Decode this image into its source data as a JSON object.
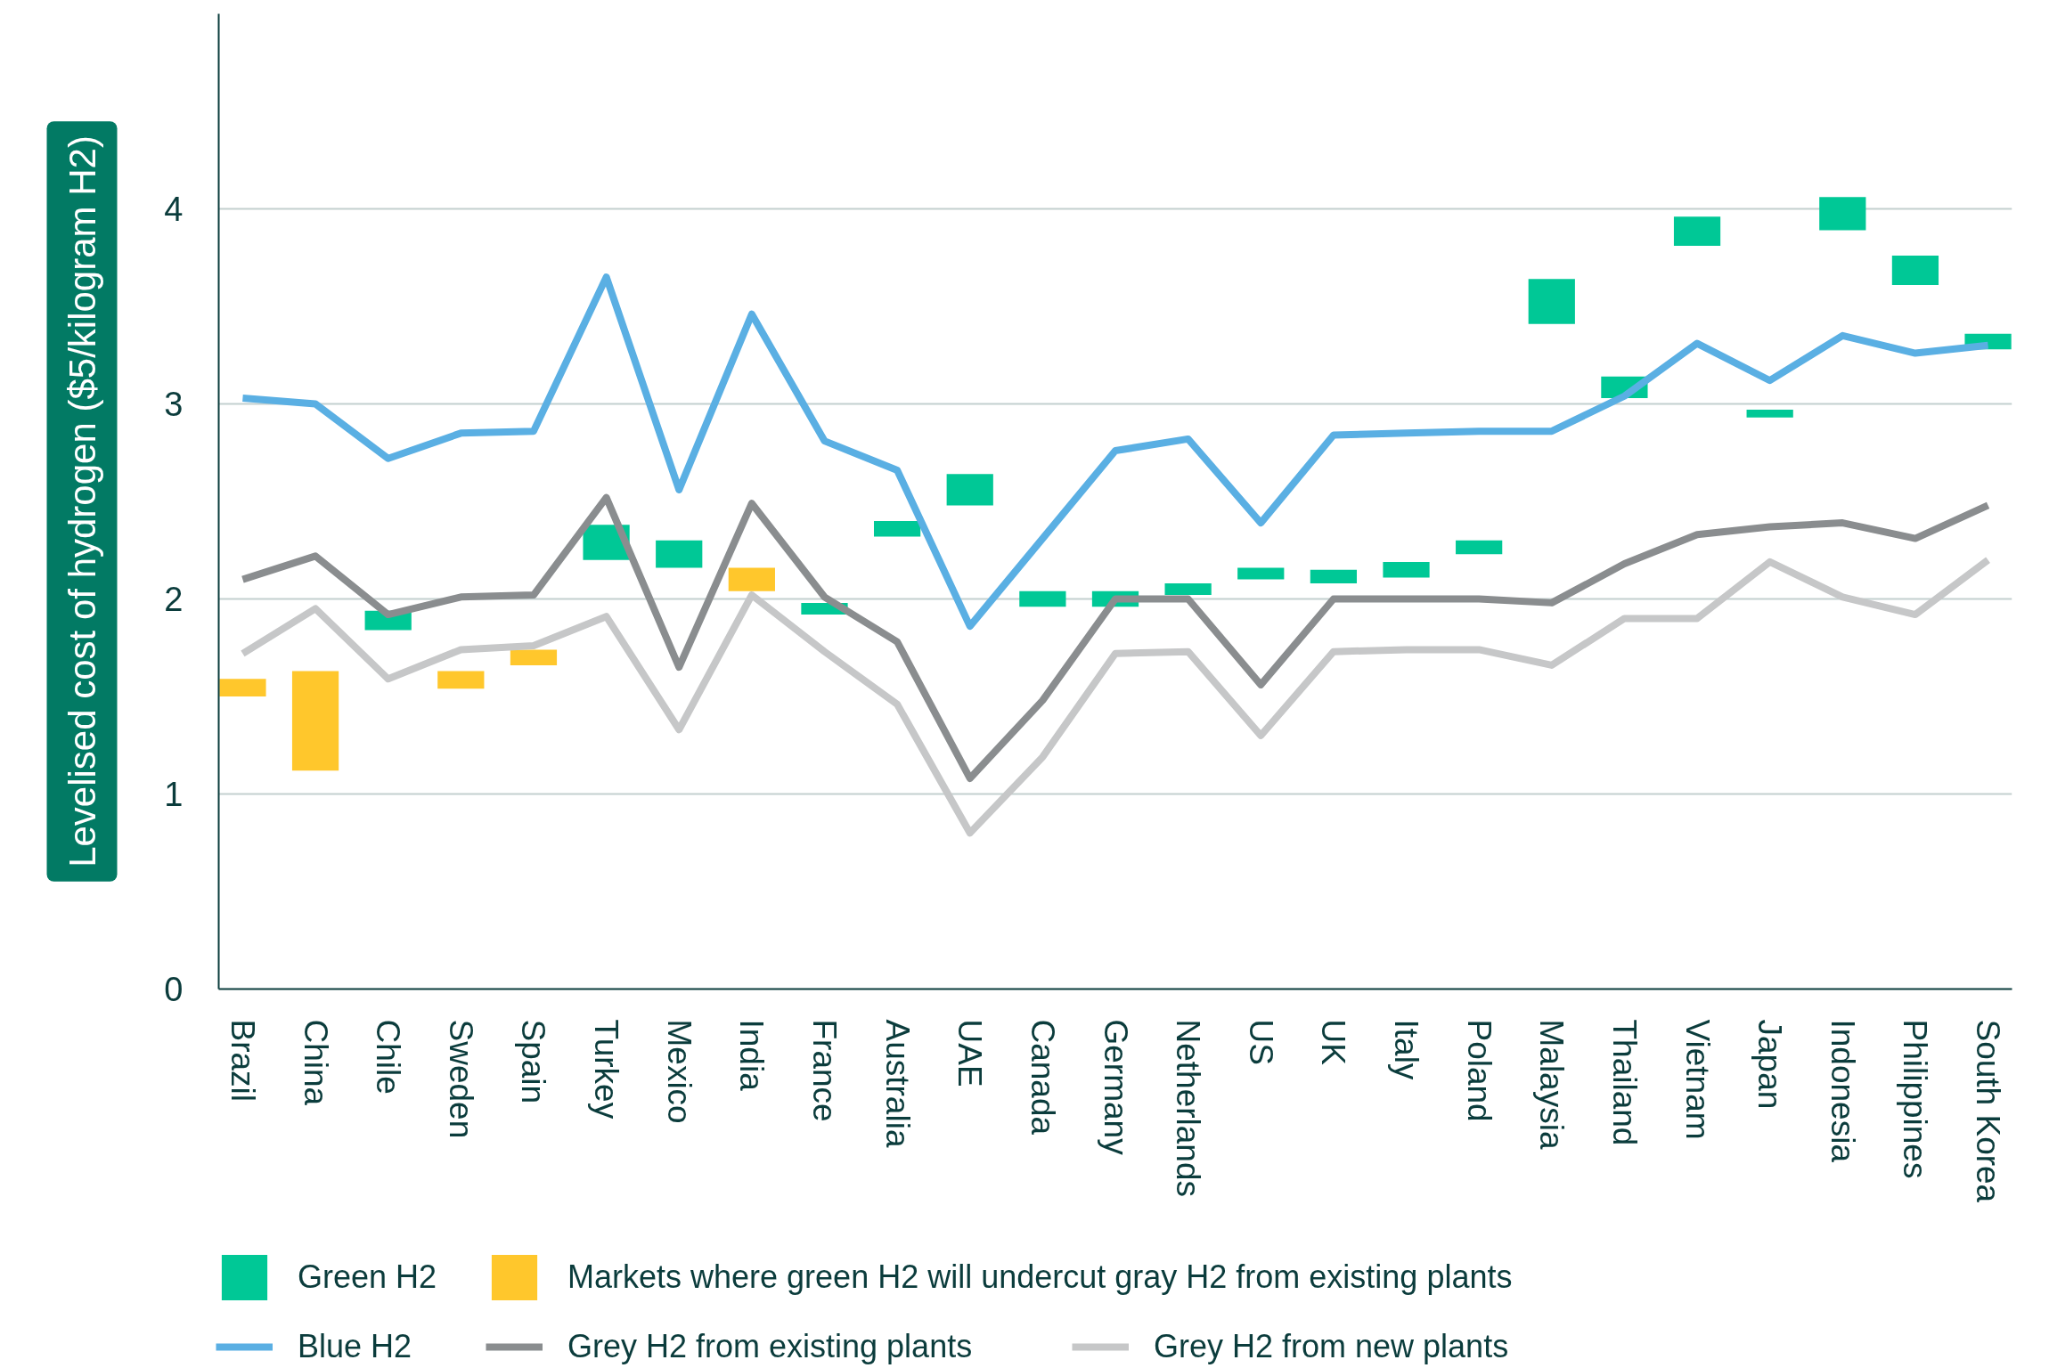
{
  "chart_data": {
    "type": "line",
    "ylabel": "Levelised cost of hydrogen ($5/kilogram H2)",
    "categories": [
      "Brazil",
      "China",
      "Chile",
      "Sweden",
      "Spain",
      "Turkey",
      "Mexico",
      "India",
      "France",
      "Australia",
      "UAE",
      "Canada",
      "Germany",
      "Netherlands",
      "US",
      "UK",
      "Italy",
      "Poland",
      "Malaysia",
      "Thailand",
      "Vietnam",
      "Japan",
      "Indonesia",
      "Philippines",
      "South Korea"
    ],
    "series": [
      {
        "name": "Green H2",
        "type": "bar",
        "color": "#00c896",
        "base": [
          null,
          null,
          1.84,
          null,
          null,
          2.2,
          2.16,
          null,
          1.92,
          2.32,
          2.48,
          1.96,
          1.96,
          2.02,
          2.1,
          2.08,
          2.11,
          2.23,
          3.41,
          3.03,
          3.81,
          2.93,
          3.89,
          3.61,
          3.28
        ],
        "values": [
          null,
          null,
          0.1,
          null,
          null,
          0.18,
          0.14,
          null,
          0.06,
          0.08,
          0.16,
          0.08,
          0.08,
          0.06,
          0.06,
          0.07,
          0.08,
          0.07,
          0.23,
          0.11,
          0.15,
          0.04,
          0.17,
          0.15,
          0.08
        ]
      },
      {
        "name": "Markets where green H2 will undercut gray H2 from existing plants",
        "type": "bar",
        "color": "#ffc72c",
        "base": [
          1.5,
          1.12,
          null,
          1.54,
          1.66,
          null,
          null,
          2.04,
          null,
          null,
          null,
          null,
          null,
          null,
          null,
          null,
          null,
          null,
          null,
          null,
          null,
          null,
          null,
          null,
          null
        ],
        "values": [
          0.09,
          0.51,
          null,
          0.09,
          0.08,
          null,
          null,
          0.12,
          null,
          null,
          null,
          null,
          null,
          null,
          null,
          null,
          null,
          null,
          null,
          null,
          null,
          null,
          null,
          null,
          null
        ]
      },
      {
        "name": "Blue H2",
        "color": "#5aafe3",
        "values": [
          3.03,
          3.0,
          2.72,
          2.85,
          2.86,
          3.65,
          2.56,
          3.46,
          2.81,
          2.66,
          1.86,
          2.31,
          2.76,
          2.82,
          2.39,
          2.84,
          2.85,
          2.86,
          2.86,
          3.04,
          3.31,
          3.12,
          3.35,
          3.26,
          3.3
        ]
      },
      {
        "name": "Grey H2 from existing plants",
        "color": "#8a8d8f",
        "values": [
          2.1,
          2.22,
          1.92,
          2.01,
          2.02,
          2.52,
          1.65,
          2.49,
          2.01,
          1.78,
          1.08,
          1.48,
          2.0,
          2.0,
          1.56,
          2.0,
          2.0,
          2.0,
          1.98,
          2.18,
          2.33,
          2.37,
          2.39,
          2.31,
          2.48
        ]
      },
      {
        "name": "Grey H2 from new plants",
        "color": "#c6c7c8",
        "values": [
          1.72,
          1.95,
          1.59,
          1.74,
          1.76,
          1.91,
          1.33,
          2.02,
          1.73,
          1.46,
          0.8,
          1.19,
          1.72,
          1.73,
          1.3,
          1.73,
          1.74,
          1.74,
          1.66,
          1.9,
          1.9,
          2.19,
          2.01,
          1.92,
          2.2
        ]
      }
    ],
    "ylim": [
      0,
      5
    ],
    "yticks": [
      0,
      1,
      2,
      3,
      4
    ],
    "grid": "y",
    "legend": "bottom"
  }
}
